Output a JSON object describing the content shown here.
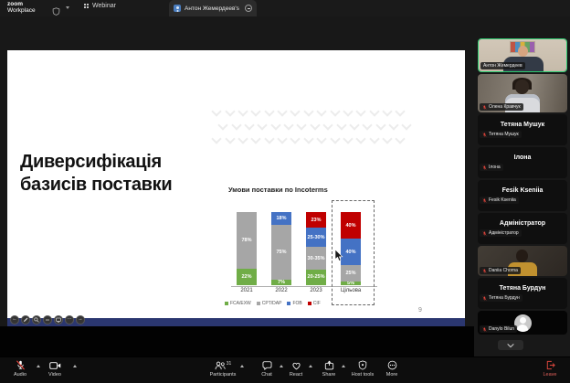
{
  "topbar": {
    "logo_line1": "zoom",
    "logo_line2": "Workplace",
    "webinar_tab": "Webinar",
    "screen_tab": "Антон Жемердеев's screen"
  },
  "slide": {
    "title": "Диверсифікація базисів поставки",
    "page_number": "9"
  },
  "chart_data": {
    "type": "bar",
    "stacked": true,
    "title": "Умови поставки по Incoterms",
    "categories": [
      "2021",
      "2022",
      "2023",
      "Цільова"
    ],
    "series": [
      {
        "name": "FCA/EXW",
        "color": "#70ad47",
        "values": [
          22,
          7,
          22.5,
          5
        ],
        "labels": [
          "22%",
          "7%",
          "20-25%",
          "5%"
        ]
      },
      {
        "name": "CPT/DAP",
        "color": "#a6a6a6",
        "values": [
          78,
          75,
          32.5,
          25
        ],
        "labels": [
          "78%",
          "75%",
          "30-35%",
          "25%"
        ]
      },
      {
        "name": "FOB",
        "color": "#4472c4",
        "values": [
          0,
          18,
          27.5,
          40
        ],
        "labels": [
          "",
          "18%",
          "25-30%",
          "40%"
        ]
      },
      {
        "name": "CIF",
        "color": "#c00000",
        "values": [
          0,
          0,
          23,
          40
        ],
        "labels": [
          "",
          "",
          "23%",
          "40%"
        ]
      }
    ],
    "ylim": [
      0,
      100
    ],
    "legend_position": "bottom",
    "highlight_category": "Цільова",
    "bar_label_color": "#ffffff"
  },
  "sidebar": {
    "tiles": [
      {
        "name": "Антон Жемердеев",
        "label": "Антон Жемердеев",
        "type": "video",
        "active_speaker": true
      },
      {
        "name": "Олена Кравчук",
        "label": "Олена Кравчук",
        "type": "video",
        "muted": true
      },
      {
        "name": "Тетяна Мушук",
        "label": "Тетяна Мушук",
        "type": "name",
        "muted": true
      },
      {
        "name": "Ілона",
        "label": "Ілона",
        "type": "name",
        "muted": true
      },
      {
        "name": "Fesik Kseniia",
        "label": "Fesik Kseniia",
        "type": "name",
        "muted": true
      },
      {
        "name": "Адміністратор",
        "label": "Адміністратор",
        "type": "name",
        "muted": true
      },
      {
        "name": "Daniia Chorna",
        "label": "Daniia Chorna",
        "type": "video",
        "muted": true
      },
      {
        "name": "Тетяна Бурдун",
        "label": "Тетяна Бурдун",
        "type": "name",
        "muted": true
      },
      {
        "name": "Danylo Bilun",
        "label": "Danylo Bilun",
        "type": "avatar",
        "muted": true
      }
    ]
  },
  "toolbar": {
    "audio": "Audio",
    "video": "Video",
    "participants": "Participants",
    "participants_count": "31",
    "chat": "Chat",
    "react": "React",
    "share": "Share",
    "host_tools": "Host tools",
    "more": "More",
    "leave": "Leave"
  },
  "icons": {
    "topbar": [
      "shield-icon",
      "dropdown-caret-icon",
      "webinar-icon",
      "tab-avatar-icon",
      "collapse-tab-icon"
    ],
    "presenter_controls": [
      "prev-slide-icon",
      "pen-icon",
      "magnifier-icon",
      "captions-icon",
      "display-icon",
      "more-icon",
      "next-slide-icon"
    ],
    "toolbar": [
      "mic-muted-icon",
      "camera-icon",
      "participants-icon",
      "chat-icon",
      "heart-icon",
      "share-icon",
      "shield-icon",
      "ellipsis-icon",
      "leave-icon"
    ],
    "sidebar": [
      "mic-muted-icon",
      "chevron-down-icon",
      "avatar-placeholder-icon"
    ]
  },
  "colors": {
    "active_speaker_border": "#2ecc71",
    "muted_mic": "#e8453c",
    "leave_red": "#e0605a",
    "slide_bg": "#ffffff",
    "navy_strip": "#2b3770"
  }
}
